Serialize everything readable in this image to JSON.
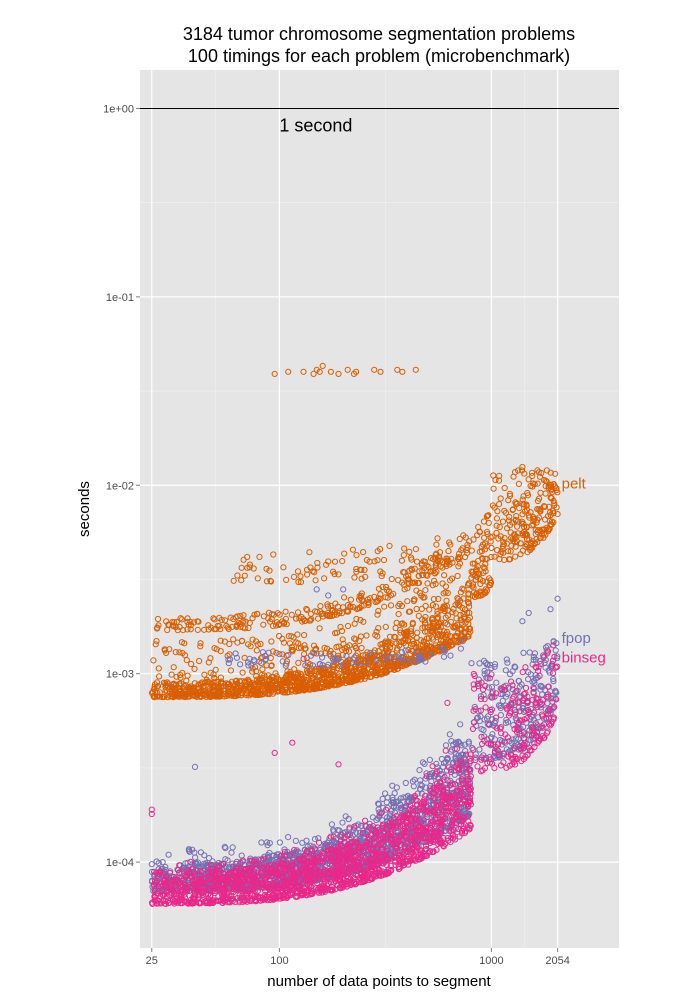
{
  "chart_data": {
    "type": "scatter",
    "title_lines": [
      "3184 tumor chromosome segmentation problems",
      "100 timings for each problem (microbenchmark)"
    ],
    "xlabel": "number of data points to segment",
    "ylabel": "seconds",
    "x_scale": "log",
    "y_scale": "log",
    "xlim": [
      22,
      4000
    ],
    "ylim": [
      3.5e-05,
      1.6
    ],
    "x_ticks": [
      {
        "value": 25,
        "label": "25"
      },
      {
        "value": 100,
        "label": "100"
      },
      {
        "value": 1000,
        "label": "1000"
      },
      {
        "value": 2054,
        "label": "2054"
      }
    ],
    "y_ticks": [
      {
        "value": 1,
        "label": "1e+00"
      },
      {
        "value": 0.1,
        "label": "1e-01"
      },
      {
        "value": 0.01,
        "label": "1e-02"
      },
      {
        "value": 0.001,
        "label": "1e-03"
      },
      {
        "value": 0.0001,
        "label": "1e-04"
      }
    ],
    "grid": true,
    "reference_line": {
      "y": 1,
      "label": "1 second"
    },
    "series": [
      {
        "name": "pelt",
        "color": "#D95F02",
        "bands": [
          {
            "x": [
              25,
              800
            ],
            "y_start": [
              0.00075,
              0.0009
            ],
            "y_end": [
              0.0016,
              0.0032
            ],
            "count": 900
          },
          {
            "x": [
              25,
              800
            ],
            "y_start": [
              0.00075,
              0.0015
            ],
            "y_end": [
              0.0016,
              0.0045
            ],
            "count": 500
          },
          {
            "x": [
              25,
              800
            ],
            "y_start": [
              0.0017,
              0.002
            ],
            "y_end": [
              0.0045,
              0.006
            ],
            "count": 260
          },
          {
            "x": [
              60,
              650
            ],
            "y_start": [
              0.003,
              0.0045
            ],
            "y_end": [
              0.004,
              0.0055
            ],
            "count": 90
          },
          {
            "x": [
              800,
              1000
            ],
            "y_start": [
              0.0025,
              0.006
            ],
            "y_end": [
              0.003,
              0.008
            ],
            "count": 80
          },
          {
            "x": [
              1000,
              2054
            ],
            "y_start": [
              0.004,
              0.012
            ],
            "y_end": [
              0.007,
              0.012
            ],
            "count": 220
          }
        ],
        "points": [
          {
            "x": 95,
            "y": 0.039
          },
          {
            "x": 110,
            "y": 0.04
          },
          {
            "x": 130,
            "y": 0.04
          },
          {
            "x": 145,
            "y": 0.039
          },
          {
            "x": 150,
            "y": 0.041
          },
          {
            "x": 155,
            "y": 0.04
          },
          {
            "x": 160,
            "y": 0.043
          },
          {
            "x": 175,
            "y": 0.04
          },
          {
            "x": 190,
            "y": 0.039
          },
          {
            "x": 210,
            "y": 0.041
          },
          {
            "x": 225,
            "y": 0.039
          },
          {
            "x": 230,
            "y": 0.04
          },
          {
            "x": 280,
            "y": 0.041
          },
          {
            "x": 300,
            "y": 0.04
          },
          {
            "x": 360,
            "y": 0.041
          },
          {
            "x": 380,
            "y": 0.04
          },
          {
            "x": 440,
            "y": 0.041
          },
          {
            "x": 1400,
            "y": 0.0125
          },
          {
            "x": 1650,
            "y": 0.012
          },
          {
            "x": 2000,
            "y": 0.0115
          }
        ]
      },
      {
        "name": "fpop",
        "color": "#7570B3",
        "bands": [
          {
            "x": [
              25,
              800
            ],
            "y_start": [
              7e-05,
              0.0001
            ],
            "y_end": [
              0.00018,
              0.00055
            ],
            "count": 1400
          },
          {
            "x": [
              25,
              800
            ],
            "y_start": [
              8e-05,
              0.00012
            ],
            "y_end": [
              0.00025,
              0.0007
            ],
            "count": 300
          },
          {
            "x": [
              55,
              750
            ],
            "y_start": [
              0.0011,
              0.0013
            ],
            "y_end": [
              0.0012,
              0.0015
            ],
            "count": 70
          },
          {
            "x": [
              800,
              2054
            ],
            "y_start": [
              0.00035,
              0.0012
            ],
            "y_end": [
              0.0007,
              0.0018
            ],
            "count": 260
          }
        ],
        "points": [
          {
            "x": 40,
            "y": 0.00032
          },
          {
            "x": 150,
            "y": 0.0028
          },
          {
            "x": 170,
            "y": 0.0026
          },
          {
            "x": 200,
            "y": 0.0028
          },
          {
            "x": 1400,
            "y": 0.0019
          },
          {
            "x": 1500,
            "y": 0.0021
          },
          {
            "x": 1900,
            "y": 0.0022
          },
          {
            "x": 2054,
            "y": 0.0025
          }
        ]
      },
      {
        "name": "binseg",
        "color": "#E7298A",
        "bands": [
          {
            "x": [
              25,
              800
            ],
            "y_start": [
              6e-05,
              9e-05
            ],
            "y_end": [
              0.00015,
              0.0004
            ],
            "count": 1400
          },
          {
            "x": [
              25,
              800
            ],
            "y_start": [
              7e-05,
              0.0001
            ],
            "y_end": [
              0.00022,
              0.0006
            ],
            "count": 300
          },
          {
            "x": [
              800,
              2054
            ],
            "y_start": [
              0.0003,
              0.001
            ],
            "y_end": [
              0.0006,
              0.0015
            ],
            "count": 200
          }
        ],
        "points": [
          {
            "x": 25,
            "y": 0.00018
          },
          {
            "x": 25,
            "y": 0.00019
          },
          {
            "x": 95,
            "y": 0.00038
          },
          {
            "x": 115,
            "y": 0.00043
          },
          {
            "x": 130,
            "y": 0.0012
          },
          {
            "x": 190,
            "y": 0.00033
          },
          {
            "x": 620,
            "y": 0.0007
          }
        ]
      }
    ]
  }
}
